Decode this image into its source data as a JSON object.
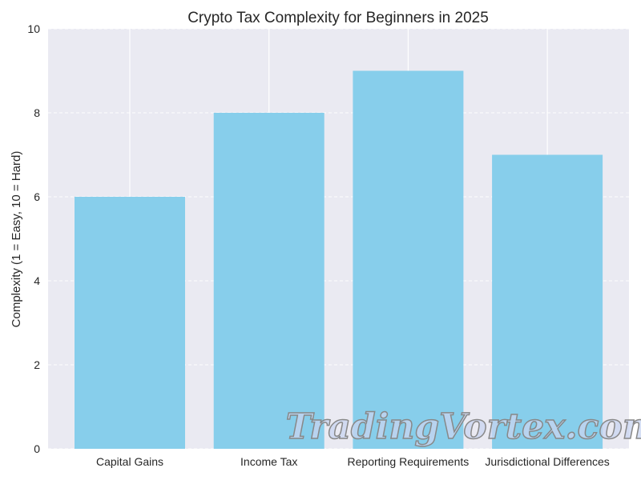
{
  "chart_data": {
    "type": "bar",
    "title": "Crypto Tax Complexity for Beginners in 2025",
    "xlabel": "",
    "ylabel": "Complexity (1 = Easy, 10 = Hard)",
    "categories": [
      "Capital Gains",
      "Income Tax",
      "Reporting Requirements",
      "Jurisdictional Differences"
    ],
    "values": [
      6,
      8,
      9,
      7
    ],
    "ylim": [
      0,
      10
    ],
    "yticks": [
      "0",
      "2",
      "4",
      "6",
      "8",
      "10"
    ],
    "grid": true,
    "bar_color": "#87ceeb",
    "background_color": "#eaeaf2"
  },
  "watermark": "TradingVortex.com"
}
